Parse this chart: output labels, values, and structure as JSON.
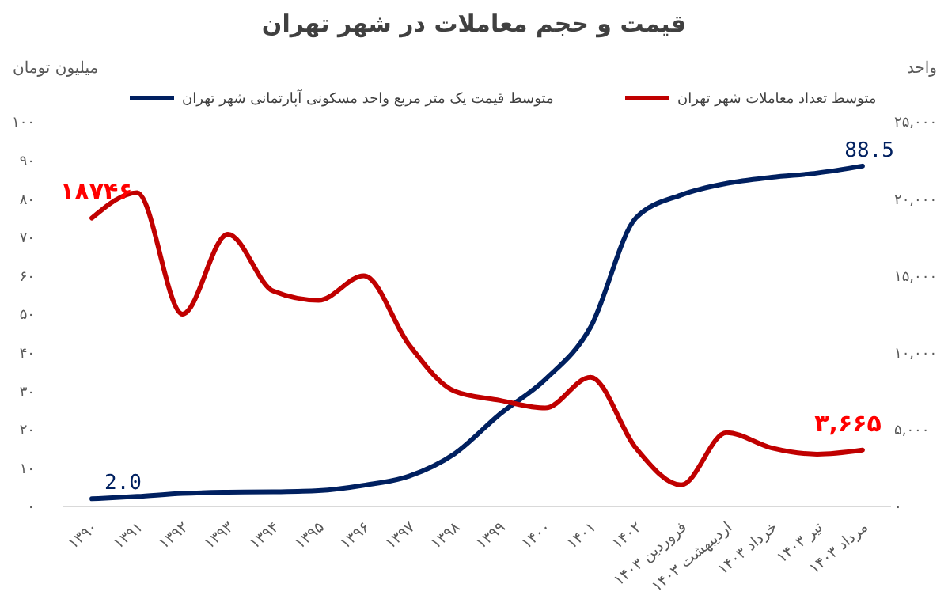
{
  "chart_data": {
    "type": "line",
    "title": "قیمت و حجم معاملات در شهر تهران",
    "ylabel": "میلیون تومان",
    "y2label": "واحد",
    "categories": [
      "۱۳۹۰",
      "۱۳۹۱",
      "۱۳۹۲",
      "۱۳۹۳",
      "۱۳۹۴",
      "۱۳۹۵",
      "۱۳۹۶",
      "۱۳۹۷",
      "۱۳۹۸",
      "۱۳۹۹",
      "۱۴۰۰",
      "۱۴۰۱",
      "۱۴۰۲",
      "فروردین ۱۴۰۳",
      "اردیبهشت ۱۴۰۳",
      "خرداد ۱۴۰۳",
      "تیر ۱۴۰۳",
      "مرداد ۱۴۰۳"
    ],
    "series": [
      {
        "name": "متوسط قیمت یک متر مربع واحد مسکونی آپارتمانی شهر تهران",
        "color": "#002060",
        "values": [
          2.0,
          2.6,
          3.4,
          3.7,
          3.8,
          4.1,
          5.5,
          7.9,
          13.7,
          24,
          33,
          46.6,
          75,
          81,
          84,
          85.6,
          86.7,
          88.5
        ],
        "value_labels": [
          "2.0",
          null,
          null,
          null,
          null,
          null,
          null,
          null,
          null,
          null,
          null,
          null,
          null,
          null,
          null,
          null,
          null,
          "88.5"
        ]
      },
      {
        "name": "متوسط تعداد معاملات شهر تهران",
        "color": "#c00000",
        "axis": "y2",
        "values": [
          18746,
          20400,
          12500,
          17700,
          14000,
          13400,
          15000,
          10500,
          7500,
          6900,
          6400,
          8400,
          3800,
          1400,
          4800,
          3800,
          3400,
          3665
        ],
        "value_labels": [
          "۱۸۷۴۶",
          null,
          null,
          null,
          null,
          null,
          null,
          null,
          null,
          null,
          null,
          null,
          null,
          null,
          null,
          null,
          null,
          "۳,۶۶۵"
        ]
      }
    ],
    "ylim": [
      0,
      100
    ],
    "yticks": [
      {
        "value": 0,
        "label": "۰"
      },
      {
        "value": 10,
        "label": "۱۰"
      },
      {
        "value": 20,
        "label": "۲۰"
      },
      {
        "value": 30,
        "label": "۳۰"
      },
      {
        "value": 40,
        "label": "۴۰"
      },
      {
        "value": 50,
        "label": "۵۰"
      },
      {
        "value": 60,
        "label": "۶۰"
      },
      {
        "value": 70,
        "label": "۷۰"
      },
      {
        "value": 80,
        "label": "۸۰"
      },
      {
        "value": 90,
        "label": "۹۰"
      },
      {
        "value": 100,
        "label": "۱۰۰"
      }
    ],
    "y2lim": [
      0,
      25000
    ],
    "y2ticks": [
      {
        "value": 0,
        "label": "۰"
      },
      {
        "value": 5000,
        "label": "۵,۰۰۰"
      },
      {
        "value": 10000,
        "label": "۱۰,۰۰۰"
      },
      {
        "value": 15000,
        "label": "۱۵,۰۰۰"
      },
      {
        "value": 20000,
        "label": "۲۰,۰۰۰"
      },
      {
        "value": 25000,
        "label": "۲۵,۰۰۰"
      }
    ],
    "legend": "top",
    "grid": false,
    "marker": "none",
    "line_style": "solid"
  }
}
